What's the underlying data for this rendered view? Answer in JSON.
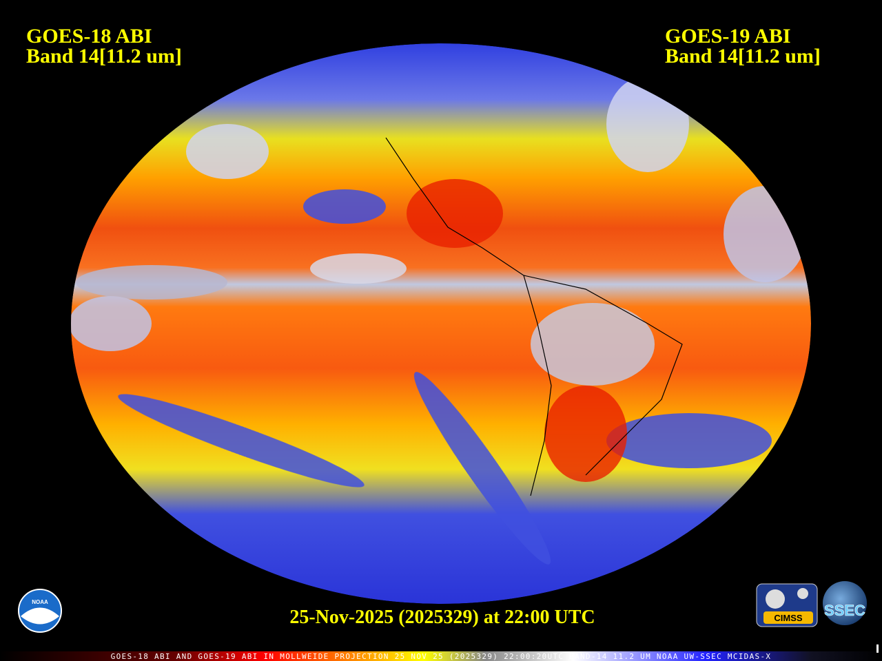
{
  "header": {
    "left": {
      "line1": "GOES-18 ABI",
      "line2": "Band 14[11.2 um]"
    },
    "right": {
      "line1": "GOES-19 ABI",
      "line2": "Band 14[11.2 um]"
    }
  },
  "timestamp": "25-Nov-2025 (2025329) at 22:00 UTC",
  "footer": "GOES-18 ABI AND GOES-19 ABI IN MOLLWEIDE PROJECTION 25 NOV 25 (2025329) 22:00:20UTC BAND-14 11.2 UM NOAA UW-SSEC MCIDAS-X",
  "logos": {
    "noaa": "NOAA",
    "cimss": "CIMSS",
    "ssec": "SSEC"
  }
}
